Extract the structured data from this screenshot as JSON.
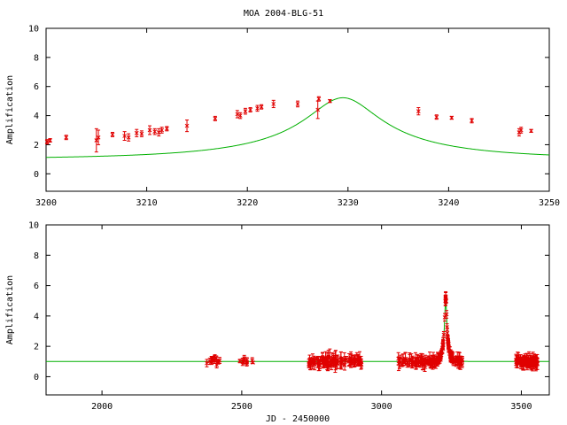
{
  "title": "MOA 2004-BLG-51",
  "colors": {
    "model": "#00b000",
    "data": "#e00000",
    "axes": "#000000"
  },
  "chart_data": [
    {
      "type": "scatter",
      "name": "top-panel",
      "xlabel": "",
      "ylabel": "Amplification",
      "xlim": [
        3200,
        3250
      ],
      "ylim": [
        -1.2,
        10
      ],
      "xticks": [
        3200,
        3210,
        3220,
        3230,
        3240,
        3250
      ],
      "yticks": [
        0,
        2,
        4,
        6,
        8,
        10
      ],
      "model": {
        "t0": 3229.5,
        "u0": 0.194,
        "tE": 19.5,
        "baseline": 1.0
      },
      "points": [
        [
          3200.1,
          2.2,
          0.15
        ],
        [
          3200.4,
          2.3,
          0.12
        ],
        [
          3202.0,
          2.5,
          0.15
        ],
        [
          3205.0,
          2.3,
          0.8
        ],
        [
          3205.2,
          2.5,
          0.5
        ],
        [
          3206.6,
          2.7,
          0.15
        ],
        [
          3207.8,
          2.6,
          0.3
        ],
        [
          3208.2,
          2.5,
          0.25
        ],
        [
          3209.0,
          2.8,
          0.25
        ],
        [
          3209.5,
          2.75,
          0.2
        ],
        [
          3210.3,
          3.0,
          0.3
        ],
        [
          3210.8,
          2.9,
          0.2
        ],
        [
          3211.2,
          2.85,
          0.25
        ],
        [
          3211.5,
          3.0,
          0.2
        ],
        [
          3212.0,
          3.1,
          0.15
        ],
        [
          3214.0,
          3.3,
          0.4
        ],
        [
          3216.8,
          3.8,
          0.15
        ],
        [
          3219.0,
          4.1,
          0.25
        ],
        [
          3219.3,
          4.0,
          0.2
        ],
        [
          3219.8,
          4.3,
          0.2
        ],
        [
          3220.3,
          4.4,
          0.15
        ],
        [
          3221.0,
          4.5,
          0.2
        ],
        [
          3221.4,
          4.6,
          0.15
        ],
        [
          3222.6,
          4.8,
          0.25
        ],
        [
          3225.0,
          4.8,
          0.2
        ],
        [
          3227.0,
          4.4,
          0.6
        ],
        [
          3227.1,
          5.15,
          0.15
        ],
        [
          3228.2,
          5.0,
          0.1
        ],
        [
          3237.0,
          4.3,
          0.25
        ],
        [
          3238.8,
          3.9,
          0.15
        ],
        [
          3240.3,
          3.85,
          0.1
        ],
        [
          3242.3,
          3.65,
          0.15
        ],
        [
          3247.0,
          2.85,
          0.25
        ],
        [
          3247.2,
          3.0,
          0.2
        ],
        [
          3248.2,
          2.95,
          0.1
        ]
      ]
    },
    {
      "type": "scatter",
      "name": "bottom-panel",
      "xlabel": "JD - 2450000",
      "ylabel": "Amplification",
      "xlim": [
        1800,
        3600
      ],
      "ylim": [
        -1.2,
        10
      ],
      "xticks": [
        2000,
        2500,
        3000,
        3500
      ],
      "yticks": [
        0,
        2,
        4,
        6,
        8,
        10
      ],
      "model": {
        "t0": 3229.5,
        "u0": 0.194,
        "tE": 19.5,
        "baseline": 1.0
      },
      "clusters": [
        {
          "x": [
            2375,
            2425
          ],
          "n": 14,
          "err": 0.2
        },
        {
          "x": [
            2490,
            2545
          ],
          "n": 10,
          "err": 0.2
        },
        {
          "x": [
            2740,
            2795
          ],
          "n": 28,
          "err": 0.3
        },
        {
          "x": [
            2795,
            2860
          ],
          "n": 34,
          "err": 0.45
        },
        {
          "x": [
            2860,
            2930
          ],
          "n": 30,
          "err": 0.35
        },
        {
          "x": [
            3060,
            3160
          ],
          "n": 45,
          "err": 0.35
        },
        {
          "x": [
            3160,
            3200
          ],
          "n": 24,
          "err": 0.35
        },
        {
          "x": [
            3255,
            3290
          ],
          "n": 24,
          "err": 0.3
        },
        {
          "x": [
            3480,
            3520
          ],
          "n": 40,
          "err": 0.3
        },
        {
          "x": [
            3520,
            3560
          ],
          "n": 45,
          "err": 0.35
        }
      ]
    }
  ]
}
